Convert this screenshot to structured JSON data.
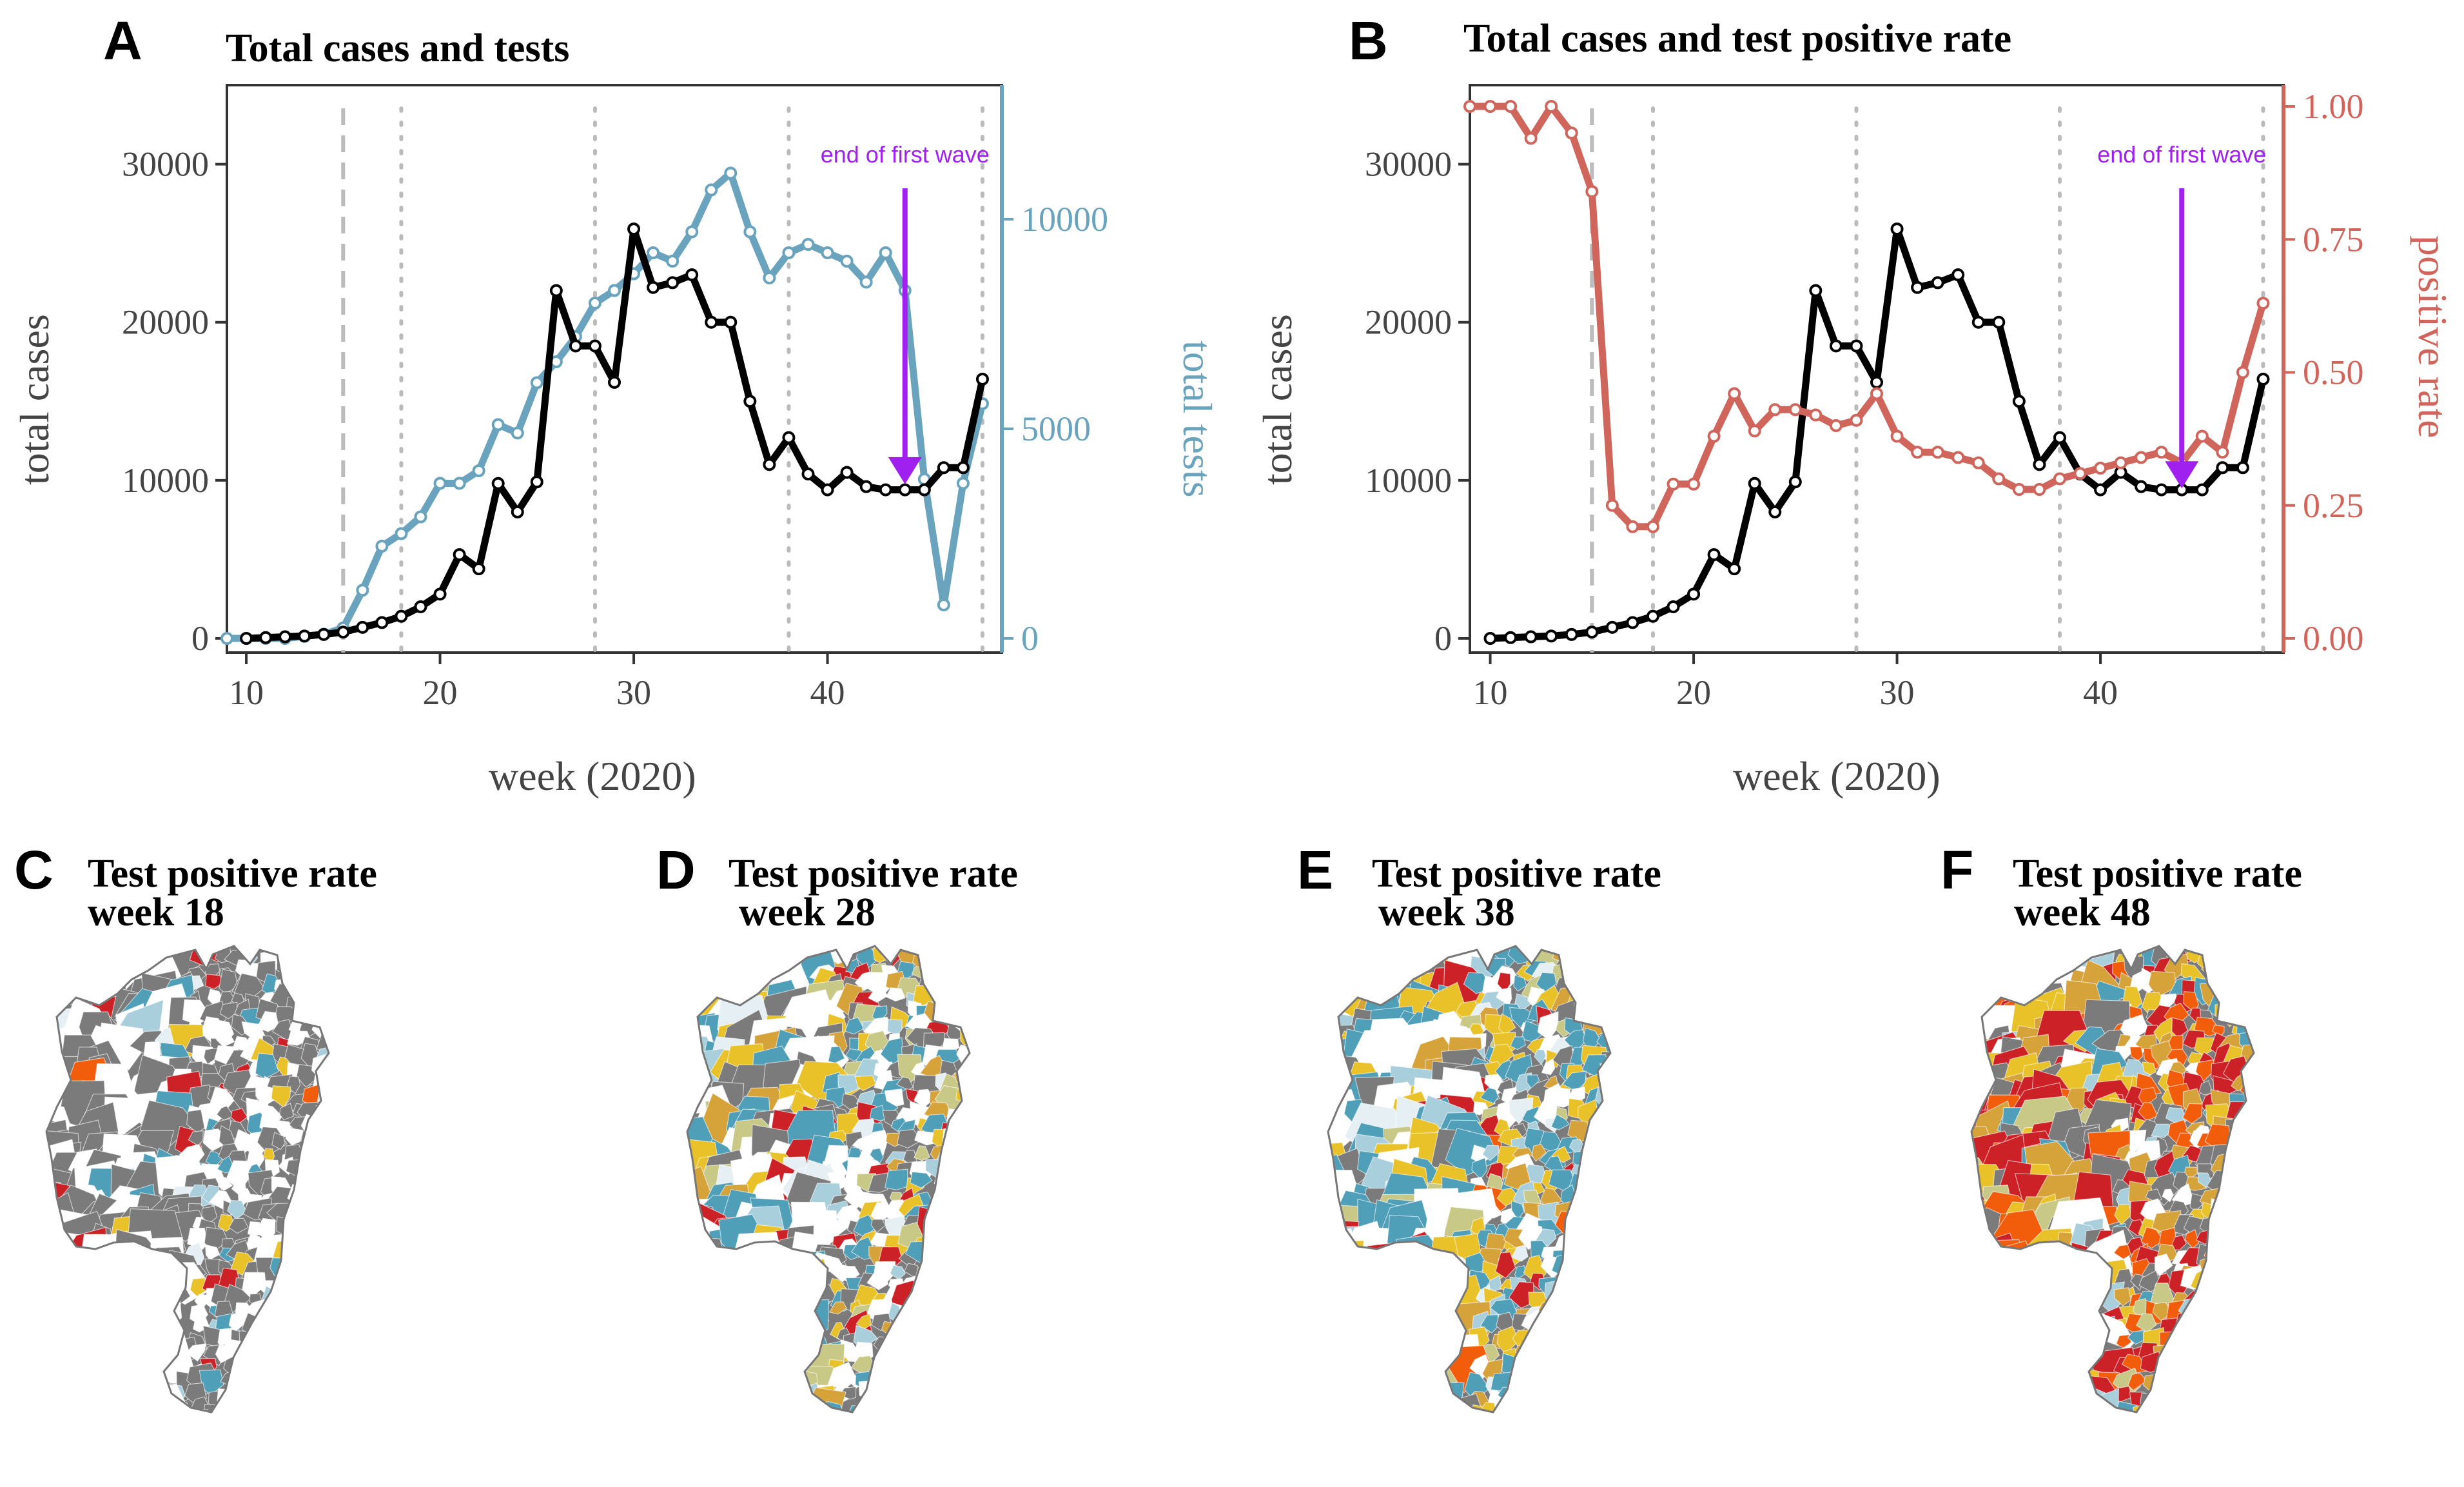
{
  "chart_data": [
    {
      "panel": "A",
      "type": "line",
      "title": "Total cases and tests",
      "xlabel": "week (2020)",
      "ylabel": "total cases",
      "y2label": "total tests",
      "xlim": [
        9,
        49
      ],
      "ylim": [
        0,
        35000
      ],
      "y2lim": [
        0,
        13200
      ],
      "xticks": [
        10,
        20,
        30,
        40
      ],
      "yticks": [
        0,
        10000,
        20000,
        30000
      ],
      "y2ticks": [
        0,
        5000,
        10000
      ],
      "vlines_dashed": [
        15
      ],
      "vlines_dotted": [
        18,
        28,
        38,
        48
      ],
      "annotation": {
        "label": "end of first wave",
        "x": 44
      },
      "colors": {
        "cases": "#000000",
        "tests": "#6aa3bd",
        "annotation": "#a020f0",
        "refline": "#bbbbbb"
      },
      "series": [
        {
          "name": "total cases",
          "axis": "left",
          "x": [
            10,
            11,
            12,
            13,
            14,
            15,
            16,
            17,
            18,
            19,
            20,
            21,
            22,
            23,
            24,
            25,
            26,
            27,
            28,
            29,
            30,
            31,
            32,
            33,
            34,
            35,
            36,
            37,
            38,
            39,
            40,
            41,
            42,
            43,
            44,
            45,
            46,
            47,
            48
          ],
          "values": [
            0,
            50,
            100,
            150,
            250,
            400,
            700,
            1000,
            1400,
            2000,
            2800,
            5300,
            4400,
            9800,
            8000,
            9900,
            22000,
            18500,
            18500,
            16200,
            25900,
            22200,
            22500,
            23000,
            20000,
            20000,
            15000,
            11000,
            12700,
            10400,
            9400,
            10500,
            9600,
            9400,
            9400,
            9400,
            10800,
            10800,
            16400
          ]
        },
        {
          "name": "total tests",
          "axis": "right",
          "x": [
            9,
            10,
            11,
            12,
            13,
            14,
            15,
            16,
            17,
            18,
            19,
            20,
            21,
            22,
            23,
            24,
            25,
            26,
            27,
            28,
            29,
            30,
            31,
            32,
            33,
            34,
            35,
            36,
            37,
            38,
            39,
            40,
            41,
            42,
            43,
            44,
            45,
            46,
            47,
            48
          ],
          "values": [
            0,
            0,
            0,
            0,
            50,
            100,
            250,
            1150,
            2200,
            2500,
            2900,
            3700,
            3700,
            4000,
            5100,
            4900,
            6100,
            6600,
            7200,
            8000,
            8300,
            8700,
            9200,
            9000,
            9700,
            10700,
            11100,
            9700,
            8600,
            9200,
            9400,
            9200,
            9000,
            8500,
            9200,
            8300,
            3800,
            800,
            3700,
            5600
          ]
        }
      ]
    },
    {
      "panel": "B",
      "type": "line",
      "title": "Total cases and test positive rate",
      "xlabel": "week (2020)",
      "ylabel": "total cases",
      "y2label": "positive rate",
      "xlim": [
        9,
        49
      ],
      "ylim": [
        0,
        35000
      ],
      "y2lim": [
        0,
        1.04
      ],
      "xticks": [
        10,
        20,
        30,
        40
      ],
      "yticks": [
        0,
        10000,
        20000,
        30000
      ],
      "y2ticks": [
        "0.00",
        "0.25",
        "0.50",
        "0.75",
        "1.00"
      ],
      "vlines_dashed": [
        15
      ],
      "vlines_dotted": [
        18,
        28,
        38,
        48
      ],
      "annotation": {
        "label": "end of first wave",
        "x": 44
      },
      "colors": {
        "cases": "#000000",
        "rate": "#d0655c",
        "annotation": "#a020f0",
        "refline": "#bbbbbb"
      },
      "series": [
        {
          "name": "total cases",
          "axis": "left",
          "x": [
            10,
            11,
            12,
            13,
            14,
            15,
            16,
            17,
            18,
            19,
            20,
            21,
            22,
            23,
            24,
            25,
            26,
            27,
            28,
            29,
            30,
            31,
            32,
            33,
            34,
            35,
            36,
            37,
            38,
            39,
            40,
            41,
            42,
            43,
            44,
            45,
            46,
            47,
            48
          ],
          "values": [
            0,
            50,
            100,
            150,
            250,
            400,
            700,
            1000,
            1400,
            2000,
            2800,
            5300,
            4400,
            9800,
            8000,
            9900,
            22000,
            18500,
            18500,
            16200,
            25900,
            22200,
            22500,
            23000,
            20000,
            20000,
            15000,
            11000,
            12700,
            10400,
            9400,
            10500,
            9600,
            9400,
            9400,
            9400,
            10800,
            10800,
            16400
          ]
        },
        {
          "name": "positive rate",
          "axis": "right",
          "x": [
            9,
            10,
            11,
            12,
            13,
            14,
            15,
            16,
            17,
            18,
            19,
            20,
            21,
            22,
            23,
            24,
            25,
            26,
            27,
            28,
            29,
            30,
            31,
            32,
            33,
            34,
            35,
            36,
            37,
            38,
            39,
            40,
            41,
            42,
            43,
            44,
            45,
            46,
            47,
            48
          ],
          "values": [
            1.0,
            1.0,
            1.0,
            0.94,
            1.0,
            0.95,
            0.84,
            0.25,
            0.21,
            0.21,
            0.29,
            0.29,
            0.38,
            0.46,
            0.39,
            0.43,
            0.43,
            0.42,
            0.4,
            0.41,
            0.46,
            0.38,
            0.35,
            0.35,
            0.34,
            0.33,
            0.3,
            0.28,
            0.28,
            0.3,
            0.31,
            0.32,
            0.33,
            0.34,
            0.35,
            0.33,
            0.38,
            0.35,
            0.5,
            0.63
          ]
        }
      ]
    }
  ],
  "maps": [
    {
      "letter": "C",
      "title_line1": "Test positive rate",
      "title_line2": "week 18"
    },
    {
      "letter": "D",
      "title_line1": "Test positive rate",
      "title_line2": "week 28"
    },
    {
      "letter": "E",
      "title_line1": "Test positive rate",
      "title_line2": "week 38"
    },
    {
      "letter": "F",
      "title_line1": "Test positive rate",
      "title_line2": "week 48"
    }
  ],
  "map_palette": [
    "#7b7b7b",
    "#ffffff",
    "#4f9fb8",
    "#a9cfdd",
    "#e9c129",
    "#d6a23a",
    "#c9c987",
    "#cc2127",
    "#f25d0c",
    "#e6f0f4"
  ]
}
